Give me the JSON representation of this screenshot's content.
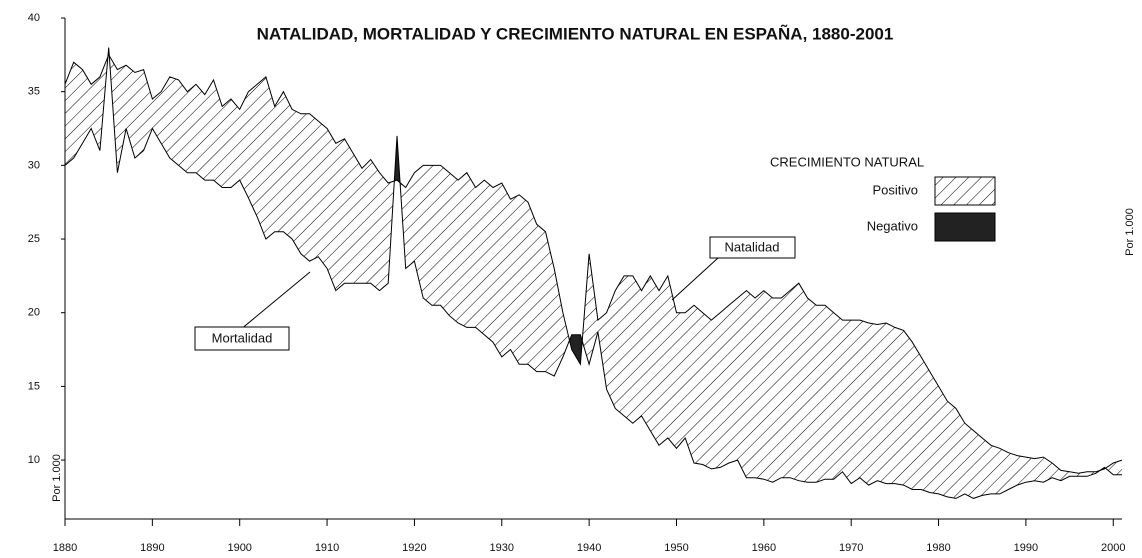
{
  "chart_data": {
    "type": "line",
    "title": "NATALIDAD, MORTALIDAD Y CRECIMIENTO NATURAL EN ESPAÑA, 1880-2001",
    "y_label": "Por 1.000",
    "x": [
      1880,
      1881,
      1882,
      1883,
      1884,
      1885,
      1886,
      1887,
      1888,
      1889,
      1890,
      1891,
      1892,
      1893,
      1894,
      1895,
      1896,
      1897,
      1898,
      1899,
      1900,
      1901,
      1902,
      1903,
      1904,
      1905,
      1906,
      1907,
      1908,
      1909,
      1910,
      1911,
      1912,
      1913,
      1914,
      1915,
      1916,
      1917,
      1918,
      1919,
      1920,
      1921,
      1922,
      1923,
      1924,
      1925,
      1926,
      1927,
      1928,
      1929,
      1930,
      1931,
      1932,
      1933,
      1934,
      1935,
      1936,
      1937,
      1938,
      1939,
      1940,
      1941,
      1942,
      1943,
      1944,
      1945,
      1946,
      1947,
      1948,
      1949,
      1950,
      1951,
      1952,
      1953,
      1954,
      1955,
      1956,
      1957,
      1958,
      1959,
      1960,
      1961,
      1962,
      1963,
      1964,
      1965,
      1966,
      1967,
      1968,
      1969,
      1970,
      1971,
      1972,
      1973,
      1974,
      1975,
      1976,
      1977,
      1978,
      1979,
      1980,
      1981,
      1982,
      1983,
      1984,
      1985,
      1986,
      1987,
      1988,
      1989,
      1990,
      1991,
      1992,
      1993,
      1994,
      1995,
      1996,
      1997,
      1998,
      1999,
      2000,
      2001
    ],
    "series": [
      {
        "name": "Natalidad",
        "color": "#000000",
        "values": [
          35.5,
          37,
          36.5,
          35.5,
          36,
          37.5,
          36.5,
          36.8,
          36.3,
          36.5,
          34.5,
          35,
          36,
          35.8,
          35,
          35.5,
          34.8,
          35.8,
          34,
          34.5,
          33.8,
          35,
          35.5,
          36,
          34,
          35,
          33.8,
          33.5,
          33.5,
          33,
          32.5,
          31.5,
          31.8,
          30.8,
          29.8,
          30.4,
          29.5,
          28.8,
          29,
          28.5,
          29.5,
          30,
          30,
          30,
          29.5,
          29,
          29.5,
          28.5,
          29,
          28.5,
          28.8,
          27.7,
          28,
          27.5,
          26,
          25.5,
          23,
          20,
          17.5,
          16.5,
          24,
          19.5,
          20,
          21.5,
          22.5,
          22.5,
          21.5,
          22.5,
          21.5,
          22.5,
          20,
          20,
          20.5,
          20,
          19.5,
          20,
          20.5,
          21,
          21.5,
          21,
          21.5,
          21,
          21,
          21.5,
          22,
          21,
          20.5,
          20.5,
          20,
          19.5,
          19.5,
          19.5,
          19.3,
          19.2,
          19.3,
          19,
          18.8,
          18,
          17,
          16,
          15,
          14,
          13.5,
          12.5,
          12,
          11.5,
          11,
          10.8,
          10.5,
          10.3,
          10.2,
          10.1,
          10.2,
          9.8,
          9.3,
          9.2,
          9.1,
          9.2,
          9.2,
          9.4,
          9.8,
          10
        ]
      },
      {
        "name": "Mortalidad",
        "color": "#000000",
        "values": [
          30,
          30.5,
          31.5,
          32.5,
          31,
          38,
          29.5,
          32.5,
          30.5,
          31,
          32.5,
          31.5,
          30.5,
          30,
          29.5,
          29.5,
          29,
          29,
          28.5,
          28.5,
          29,
          27.8,
          26.5,
          25,
          25.5,
          25.5,
          25,
          24,
          23.5,
          23.8,
          23,
          21.5,
          22,
          22,
          22,
          22,
          21.5,
          22,
          32,
          23,
          23.5,
          21,
          20.5,
          20.5,
          19.8,
          19.3,
          19,
          19,
          18.5,
          18,
          17,
          17.5,
          16.5,
          16.5,
          16,
          16,
          15.7,
          17,
          18.5,
          18.5,
          16.5,
          18.7,
          14.8,
          13.5,
          13,
          12.5,
          13,
          12,
          11,
          11.5,
          10.8,
          11.5,
          9.8,
          9.7,
          9.4,
          9.5,
          9.8,
          10,
          8.8,
          8.8,
          8.7,
          8.5,
          8.8,
          8.8,
          8.6,
          8.5,
          8.5,
          8.7,
          8.7,
          9.2,
          8.4,
          8.8,
          8.3,
          8.6,
          8.4,
          8.4,
          8.3,
          8,
          8,
          7.8,
          7.7,
          7.5,
          7.4,
          7.7,
          7.4,
          7.6,
          7.7,
          7.7,
          8,
          8.3,
          8.5,
          8.6,
          8.5,
          8.8,
          8.6,
          8.9,
          8.9,
          8.9,
          9.1,
          9.5,
          9,
          9
        ]
      }
    ],
    "legend": {
      "title": "CRECIMIENTO NATURAL",
      "items": [
        {
          "label": "Positivo",
          "color": "hatch"
        },
        {
          "label": "Negativo",
          "color": "#222222"
        }
      ]
    },
    "xlim": [
      1880,
      2001
    ],
    "xticks": [
      1880,
      1890,
      1900,
      1910,
      1920,
      1930,
      1940,
      1950,
      1960,
      1970,
      1980,
      1990,
      2000
    ],
    "ylim": [
      6,
      40
    ],
    "yticks": [
      10,
      15,
      20,
      25,
      30,
      35,
      40
    ]
  }
}
